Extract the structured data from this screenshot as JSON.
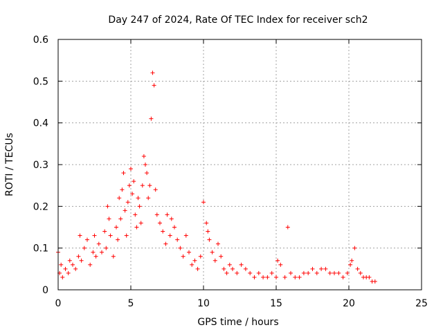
{
  "chart_data": {
    "type": "scatter",
    "title": "Day 247 of 2024, Rate Of TEC Index for receiver sch2",
    "xlabel": "GPS time / hours",
    "ylabel": "ROTI / TECUs",
    "xlim": [
      0,
      25
    ],
    "ylim": [
      0,
      0.6
    ],
    "x_ticks": [
      0,
      5,
      10,
      15,
      20,
      25
    ],
    "y_ticks": [
      0,
      0.1,
      0.2,
      0.3,
      0.4,
      0.5,
      0.6
    ],
    "x_tick_labels": [
      "0",
      "5",
      "10",
      "15",
      "20",
      "25"
    ],
    "y_tick_labels": [
      "0",
      "0.1",
      "0.2",
      "0.3",
      "0.4",
      "0.5",
      "0.6"
    ],
    "grid": true,
    "marker": "+",
    "marker_color": "#ff0000",
    "series": [
      {
        "x": [
          0.0,
          0.1,
          0.2,
          0.3,
          0.5,
          0.7,
          0.8,
          1.0,
          1.2,
          1.4,
          1.5,
          1.6,
          1.8,
          2.0,
          2.2,
          2.4,
          2.5,
          2.6,
          2.8,
          3.0,
          3.2,
          3.3,
          3.4,
          3.5,
          3.6,
          3.8,
          4.0,
          4.1,
          4.2,
          4.3,
          4.4,
          4.5,
          4.6,
          4.7,
          4.8,
          4.9,
          5.0,
          5.1,
          5.2,
          5.3,
          5.4,
          5.5,
          5.6,
          5.7,
          5.8,
          5.9,
          6.0,
          6.1,
          6.2,
          6.3,
          6.4,
          6.5,
          6.6,
          6.7,
          6.8,
          7.0,
          7.2,
          7.4,
          7.5,
          7.7,
          7.8,
          8.0,
          8.2,
          8.4,
          8.6,
          8.8,
          9.0,
          9.2,
          9.4,
          9.6,
          9.8,
          10.0,
          10.2,
          10.3,
          10.4,
          10.6,
          10.8,
          11.0,
          11.2,
          11.4,
          11.6,
          11.8,
          12.0,
          12.3,
          12.6,
          12.9,
          13.2,
          13.5,
          13.8,
          14.1,
          14.4,
          14.7,
          15.0,
          15.1,
          15.3,
          15.6,
          15.8,
          16.0,
          16.3,
          16.6,
          16.9,
          17.2,
          17.5,
          17.8,
          18.1,
          18.4,
          18.7,
          19.0,
          19.3,
          19.6,
          19.9,
          20.1,
          20.2,
          20.4,
          20.6,
          20.8,
          21.0,
          21.2,
          21.4,
          21.6,
          21.8
        ],
        "y": [
          0.09,
          0.04,
          0.06,
          0.03,
          0.05,
          0.04,
          0.07,
          0.06,
          0.05,
          0.08,
          0.13,
          0.07,
          0.1,
          0.12,
          0.06,
          0.09,
          0.13,
          0.08,
          0.11,
          0.09,
          0.14,
          0.1,
          0.2,
          0.17,
          0.13,
          0.08,
          0.15,
          0.12,
          0.22,
          0.17,
          0.24,
          0.28,
          0.19,
          0.13,
          0.21,
          0.25,
          0.29,
          0.23,
          0.26,
          0.18,
          0.15,
          0.22,
          0.2,
          0.16,
          0.25,
          0.32,
          0.3,
          0.28,
          0.22,
          0.25,
          0.41,
          0.52,
          0.49,
          0.24,
          0.18,
          0.16,
          0.14,
          0.11,
          0.18,
          0.13,
          0.17,
          0.15,
          0.12,
          0.1,
          0.08,
          0.13,
          0.09,
          0.06,
          0.07,
          0.05,
          0.08,
          0.21,
          0.16,
          0.14,
          0.12,
          0.09,
          0.07,
          0.11,
          0.08,
          0.05,
          0.04,
          0.06,
          0.05,
          0.04,
          0.06,
          0.05,
          0.04,
          0.03,
          0.04,
          0.03,
          0.03,
          0.04,
          0.03,
          0.07,
          0.06,
          0.03,
          0.15,
          0.04,
          0.03,
          0.03,
          0.04,
          0.04,
          0.05,
          0.04,
          0.05,
          0.05,
          0.04,
          0.04,
          0.04,
          0.03,
          0.04,
          0.06,
          0.07,
          0.1,
          0.05,
          0.04,
          0.03,
          0.03,
          0.03,
          0.02,
          0.02
        ]
      }
    ]
  }
}
